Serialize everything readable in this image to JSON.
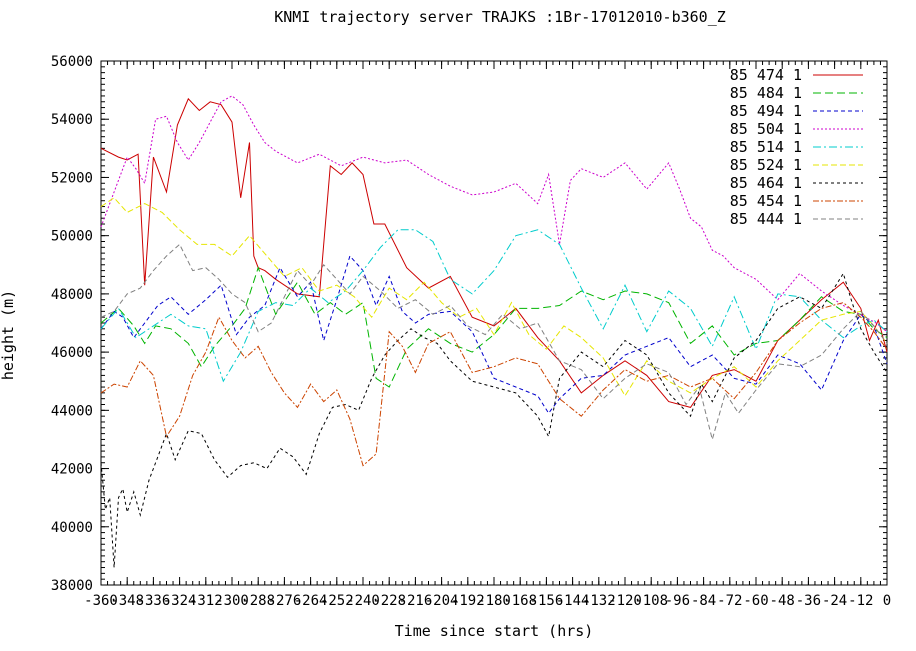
{
  "chart_data": {
    "type": "line",
    "title": "KNMI trajectory server TRAJKS :1Br-17012010-b360_Z",
    "xlabel": "Time since start (hrs)",
    "ylabel": "height (m)",
    "xlim": [
      -360,
      0
    ],
    "ylim": [
      38000,
      56000
    ],
    "y_ticks": [
      38000,
      40000,
      42000,
      44000,
      46000,
      48000,
      50000,
      52000,
      54000,
      56000
    ],
    "x_ticks": [
      -360,
      -348,
      -336,
      -324,
      -312,
      -300,
      -288,
      -276,
      -264,
      -252,
      -240,
      -228,
      -216,
      -204,
      -192,
      -180,
      -168,
      -156,
      -144,
      -132,
      -120,
      -108,
      -96,
      -84,
      -72,
      -60,
      -48,
      -36,
      -24,
      -12,
      0
    ],
    "x_tick_labels": [
      "-360",
      "-348",
      "-336",
      "-324",
      "-312",
      "-300",
      "-288",
      "-276",
      "-264",
      "-252",
      "-240",
      "-228",
      "-216",
      "-204",
      "-192",
      "-180",
      "-168",
      "-156",
      "-144",
      "-132",
      "-120",
      "-108",
      "-96",
      "-84",
      "-72",
      "-60",
      "-48",
      "-36",
      "-24",
      "-12",
      "0"
    ],
    "legend_position": "top-right",
    "grid": false,
    "series": [
      {
        "name": "85 474 1",
        "color": "#cc0000",
        "dash": "",
        "x": [
          -360,
          -352,
          -348,
          -343,
          -340,
          -336,
          -330,
          -325,
          -320,
          -315,
          -310,
          -305,
          -300,
          -296,
          -292,
          -290,
          -288,
          -285,
          -280,
          -270,
          -260,
          -255,
          -250,
          -245,
          -240,
          -235,
          -230,
          -220,
          -210,
          -200,
          -190,
          -180,
          -170,
          -160,
          -150,
          -140,
          -130,
          -120,
          -110,
          -100,
          -90,
          -80,
          -70,
          -60,
          -50,
          -40,
          -30,
          -20,
          -12,
          -8,
          -4,
          0
        ],
        "y": [
          53000,
          52700,
          52600,
          52800,
          48300,
          52700,
          51500,
          53800,
          54700,
          54300,
          54600,
          54500,
          53900,
          51300,
          53200,
          49300,
          48900,
          48800,
          48500,
          48000,
          47900,
          52400,
          52100,
          52500,
          52100,
          50400,
          50400,
          48900,
          48200,
          48600,
          47200,
          46900,
          47500,
          46500,
          45700,
          44600,
          45200,
          45700,
          45200,
          44300,
          44100,
          45200,
          45400,
          45000,
          46400,
          47100,
          47800,
          48400,
          47500,
          46400,
          47100,
          46000
        ]
      },
      {
        "name": "85 484 1",
        "color": "#00b400",
        "dash": "8,4",
        "x": [
          -360,
          -352,
          -345,
          -340,
          -335,
          -328,
          -320,
          -314,
          -308,
          -300,
          -294,
          -288,
          -280,
          -270,
          -262,
          -255,
          -248,
          -240,
          -234,
          -228,
          -220,
          -210,
          -200,
          -190,
          -180,
          -170,
          -160,
          -150,
          -140,
          -130,
          -120,
          -110,
          -100,
          -90,
          -80,
          -70,
          -60,
          -50,
          -40,
          -30,
          -20,
          -12,
          -6,
          0
        ],
        "y": [
          47000,
          47500,
          46900,
          46300,
          46900,
          46800,
          46300,
          45500,
          46200,
          46900,
          47500,
          48900,
          47300,
          48400,
          47300,
          47700,
          47300,
          47700,
          45100,
          44800,
          46100,
          46800,
          46300,
          46000,
          46600,
          47500,
          47500,
          47600,
          48100,
          47800,
          48100,
          48000,
          47700,
          46300,
          46900,
          45900,
          46300,
          46400,
          47100,
          47900,
          47400,
          47300,
          46800,
          46500
        ]
      },
      {
        "name": "85 494 1",
        "color": "#0000cc",
        "dash": "4,3",
        "x": [
          -360,
          -354,
          -350,
          -345,
          -340,
          -334,
          -328,
          -320,
          -312,
          -305,
          -298,
          -292,
          -285,
          -278,
          -270,
          -264,
          -258,
          -252,
          -246,
          -240,
          -234,
          -228,
          -222,
          -216,
          -210,
          -200,
          -190,
          -180,
          -170,
          -160,
          -155,
          -150,
          -140,
          -130,
          -120,
          -110,
          -100,
          -90,
          -80,
          -70,
          -60,
          -50,
          -40,
          -30,
          -20,
          -12,
          -6,
          0
        ],
        "y": [
          46800,
          47400,
          47200,
          46500,
          47000,
          47600,
          47900,
          47300,
          47800,
          48300,
          46600,
          47200,
          47600,
          48900,
          47900,
          48400,
          46400,
          47800,
          49300,
          48800,
          47600,
          48600,
          47400,
          47000,
          47300,
          47400,
          46700,
          45100,
          44800,
          44500,
          43900,
          44400,
          45100,
          45200,
          45900,
          46200,
          46500,
          45500,
          45900,
          45100,
          44900,
          45900,
          45600,
          44700,
          46400,
          47300,
          46900,
          45600
        ]
      },
      {
        "name": "85 504 1",
        "color": "#cc00cc",
        "dash": "2,2",
        "x": [
          -360,
          -354,
          -348,
          -344,
          -340,
          -335,
          -330,
          -325,
          -320,
          -315,
          -310,
          -305,
          -300,
          -295,
          -290,
          -285,
          -280,
          -270,
          -260,
          -250,
          -240,
          -230,
          -220,
          -210,
          -200,
          -190,
          -180,
          -170,
          -160,
          -155,
          -150,
          -145,
          -140,
          -130,
          -120,
          -110,
          -100,
          -95,
          -90,
          -85,
          -80,
          -75,
          -70,
          -60,
          -50,
          -40,
          -30,
          -20,
          -10,
          -5,
          0
        ],
        "y": [
          50300,
          51500,
          52700,
          52300,
          51800,
          54000,
          54100,
          53200,
          52600,
          53200,
          53900,
          54600,
          54800,
          54500,
          53800,
          53200,
          52900,
          52500,
          52800,
          52400,
          52700,
          52500,
          52600,
          52100,
          51700,
          51400,
          51500,
          51800,
          51100,
          52100,
          49700,
          51900,
          52300,
          52000,
          52500,
          51600,
          52500,
          51600,
          50600,
          50300,
          49500,
          49300,
          48900,
          48500,
          47800,
          48700,
          48100,
          47600,
          47200,
          47000,
          46700
        ]
      },
      {
        "name": "85 514 1",
        "color": "#00cccc",
        "dash": "8,3,2,3",
        "x": [
          -360,
          -352,
          -344,
          -336,
          -328,
          -320,
          -312,
          -304,
          -296,
          -288,
          -280,
          -272,
          -264,
          -256,
          -248,
          -240,
          -232,
          -224,
          -216,
          -208,
          -200,
          -190,
          -180,
          -170,
          -160,
          -150,
          -140,
          -130,
          -120,
          -110,
          -100,
          -90,
          -80,
          -70,
          -60,
          -50,
          -40,
          -30,
          -20,
          -12,
          -6,
          0
        ],
        "y": [
          46800,
          47500,
          46500,
          46900,
          47300,
          46900,
          46800,
          45000,
          46000,
          47400,
          47700,
          47600,
          48200,
          47700,
          48100,
          48800,
          49600,
          50200,
          50200,
          49800,
          48500,
          48000,
          48800,
          50000,
          50200,
          49700,
          48200,
          46800,
          48300,
          46700,
          48100,
          47500,
          46200,
          47900,
          46100,
          48000,
          47900,
          47100,
          46500,
          46900,
          47100,
          46700
        ]
      },
      {
        "name": "85 524 1",
        "color": "#e6e600",
        "dash": "6,3",
        "x": [
          -360,
          -354,
          -348,
          -340,
          -332,
          -324,
          -316,
          -308,
          -300,
          -292,
          -284,
          -276,
          -268,
          -260,
          -252,
          -244,
          -236,
          -228,
          -220,
          -212,
          -204,
          -196,
          -188,
          -180,
          -172,
          -164,
          -156,
          -148,
          -140,
          -130,
          -120,
          -110,
          -100,
          -90,
          -80,
          -70,
          -60,
          -50,
          -40,
          -30,
          -20,
          -12,
          -6,
          0
        ],
        "y": [
          51000,
          51300,
          50800,
          51100,
          50800,
          50200,
          49700,
          49700,
          49300,
          50000,
          49300,
          48600,
          48900,
          48100,
          48300,
          47900,
          47200,
          48200,
          47800,
          48400,
          47700,
          47200,
          47500,
          46600,
          47700,
          46600,
          46100,
          46900,
          46500,
          45800,
          44500,
          45700,
          45000,
          44600,
          45100,
          45500,
          44800,
          45700,
          46400,
          47100,
          47300,
          47400,
          46900,
          46300
        ]
      },
      {
        "name": "85 464 1",
        "color": "#000000",
        "dash": "3,3",
        "x": [
          -360,
          -358,
          -356,
          -354,
          -352,
          -350,
          -348,
          -345,
          -342,
          -338,
          -334,
          -330,
          -326,
          -320,
          -314,
          -308,
          -302,
          -296,
          -290,
          -284,
          -278,
          -272,
          -266,
          -260,
          -254,
          -248,
          -242,
          -236,
          -230,
          -224,
          -218,
          -212,
          -206,
          -200,
          -190,
          -180,
          -170,
          -160,
          -155,
          -150,
          -140,
          -130,
          -120,
          -110,
          -100,
          -90,
          -85,
          -80,
          -70,
          -60,
          -50,
          -40,
          -30,
          -20,
          -16,
          -12,
          -6,
          0
        ],
        "y": [
          42200,
          40600,
          41000,
          38600,
          41000,
          41300,
          40500,
          41200,
          40400,
          41600,
          42400,
          43200,
          42300,
          43300,
          43200,
          42300,
          41700,
          42100,
          42200,
          42000,
          42700,
          42400,
          41800,
          43200,
          44100,
          44200,
          44000,
          45100,
          45900,
          46400,
          46800,
          46500,
          46300,
          45700,
          45000,
          44800,
          44600,
          43800,
          43100,
          45100,
          46000,
          45500,
          46400,
          45900,
          44600,
          43800,
          44900,
          44300,
          45800,
          46400,
          47500,
          47900,
          47500,
          48700,
          47700,
          46800,
          46000,
          45300
        ]
      },
      {
        "name": "85 454 1",
        "color": "#cc4400",
        "dash": "6,2,2,2",
        "x": [
          -360,
          -354,
          -348,
          -342,
          -336,
          -330,
          -324,
          -318,
          -312,
          -306,
          -300,
          -294,
          -288,
          -282,
          -276,
          -270,
          -264,
          -258,
          -252,
          -246,
          -240,
          -234,
          -228,
          -222,
          -216,
          -210,
          -200,
          -190,
          -180,
          -170,
          -160,
          -150,
          -140,
          -130,
          -120,
          -110,
          -100,
          -90,
          -80,
          -70,
          -60,
          -50,
          -40,
          -30,
          -20,
          -12,
          -6,
          0
        ],
        "y": [
          44600,
          44900,
          44800,
          45700,
          45200,
          43100,
          43800,
          45200,
          46000,
          47200,
          46400,
          45800,
          46200,
          45300,
          44600,
          44100,
          44900,
          44300,
          44700,
          43700,
          42100,
          42500,
          46700,
          46200,
          45300,
          46300,
          46700,
          45300,
          45500,
          45800,
          45600,
          44400,
          43800,
          44700,
          45400,
          45000,
          45200,
          44800,
          45100,
          44400,
          45300,
          46400,
          47000,
          47500,
          47700,
          47200,
          46700,
          46100
        ]
      },
      {
        "name": "85 444 1",
        "color": "#808080",
        "dash": "5,3",
        "x": [
          -360,
          -354,
          -348,
          -342,
          -336,
          -330,
          -324,
          -318,
          -312,
          -306,
          -300,
          -294,
          -288,
          -282,
          -276,
          -270,
          -264,
          -258,
          -252,
          -246,
          -240,
          -232,
          -224,
          -216,
          -208,
          -200,
          -192,
          -184,
          -176,
          -168,
          -160,
          -150,
          -140,
          -130,
          -120,
          -110,
          -100,
          -92,
          -86,
          -80,
          -74,
          -68,
          -60,
          -50,
          -40,
          -30,
          -20,
          -12,
          -6,
          0
        ],
        "y": [
          47200,
          47400,
          48000,
          48200,
          48800,
          49300,
          49700,
          48800,
          48900,
          48500,
          48000,
          47700,
          46700,
          47000,
          47900,
          48800,
          48300,
          49000,
          48500,
          48000,
          48600,
          48100,
          47500,
          47800,
          47300,
          47600,
          46900,
          46600,
          47300,
          46800,
          47000,
          45700,
          45400,
          44400,
          45100,
          45600,
          45300,
          44200,
          44800,
          43000,
          44600,
          43900,
          44700,
          45600,
          45500,
          45900,
          46800,
          47400,
          46900,
          46300
        ]
      }
    ]
  }
}
